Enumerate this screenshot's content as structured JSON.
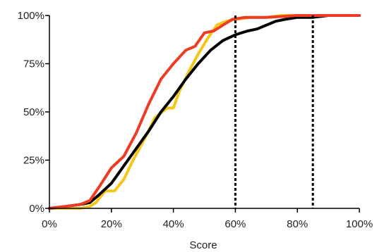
{
  "chart_data": {
    "type": "line",
    "title": "",
    "xlabel": "Score",
    "ylabel": "",
    "xlim": [
      0,
      100
    ],
    "ylim": [
      0,
      100
    ],
    "x_ticks": [
      "0%",
      "20%",
      "40%",
      "60%",
      "80%",
      "100%"
    ],
    "y_ticks": [
      "0%",
      "25%",
      "50%",
      "75%",
      "100%"
    ],
    "grid": false,
    "legend": "none",
    "reference_lines": [
      {
        "x": 60,
        "style": "dotted",
        "color": "#000000"
      },
      {
        "x": 85,
        "style": "dotted",
        "color": "#000000"
      }
    ],
    "series": [
      {
        "color": "#f5c518",
        "points": [
          [
            0,
            0
          ],
          [
            10,
            0
          ],
          [
            13,
            1
          ],
          [
            15,
            3
          ],
          [
            18,
            9
          ],
          [
            21,
            9
          ],
          [
            24,
            15
          ],
          [
            27,
            25
          ],
          [
            31,
            37
          ],
          [
            34,
            47
          ],
          [
            38,
            52
          ],
          [
            40,
            52
          ],
          [
            42,
            61
          ],
          [
            45,
            71
          ],
          [
            48,
            80
          ],
          [
            51,
            88
          ],
          [
            54,
            95
          ],
          [
            57,
            97
          ],
          [
            60,
            98
          ],
          [
            65,
            99
          ],
          [
            70,
            99
          ],
          [
            75,
            100
          ],
          [
            100,
            100
          ]
        ]
      },
      {
        "color": "#000000",
        "points": [
          [
            0,
            0
          ],
          [
            5,
            1
          ],
          [
            10,
            2
          ],
          [
            13,
            3
          ],
          [
            16,
            7
          ],
          [
            20,
            13
          ],
          [
            24,
            22
          ],
          [
            28,
            31
          ],
          [
            32,
            40
          ],
          [
            36,
            50
          ],
          [
            40,
            58
          ],
          [
            44,
            67
          ],
          [
            48,
            75
          ],
          [
            52,
            82
          ],
          [
            56,
            87
          ],
          [
            60,
            90
          ],
          [
            64,
            92
          ],
          [
            67,
            93
          ],
          [
            70,
            95
          ],
          [
            73,
            97
          ],
          [
            76,
            98
          ],
          [
            80,
            99
          ],
          [
            85,
            99
          ],
          [
            90,
            100
          ],
          [
            100,
            100
          ]
        ]
      },
      {
        "color": "#ef3b24",
        "points": [
          [
            0,
            0
          ],
          [
            5,
            1
          ],
          [
            10,
            2
          ],
          [
            13,
            4
          ],
          [
            16,
            11
          ],
          [
            20,
            21
          ],
          [
            24,
            27
          ],
          [
            28,
            39
          ],
          [
            32,
            54
          ],
          [
            36,
            67
          ],
          [
            40,
            75
          ],
          [
            44,
            82
          ],
          [
            47,
            84
          ],
          [
            50,
            91
          ],
          [
            53,
            92
          ],
          [
            56,
            95
          ],
          [
            59,
            98
          ],
          [
            63,
            99
          ],
          [
            70,
            99
          ],
          [
            80,
            100
          ],
          [
            100,
            100
          ]
        ]
      }
    ]
  }
}
